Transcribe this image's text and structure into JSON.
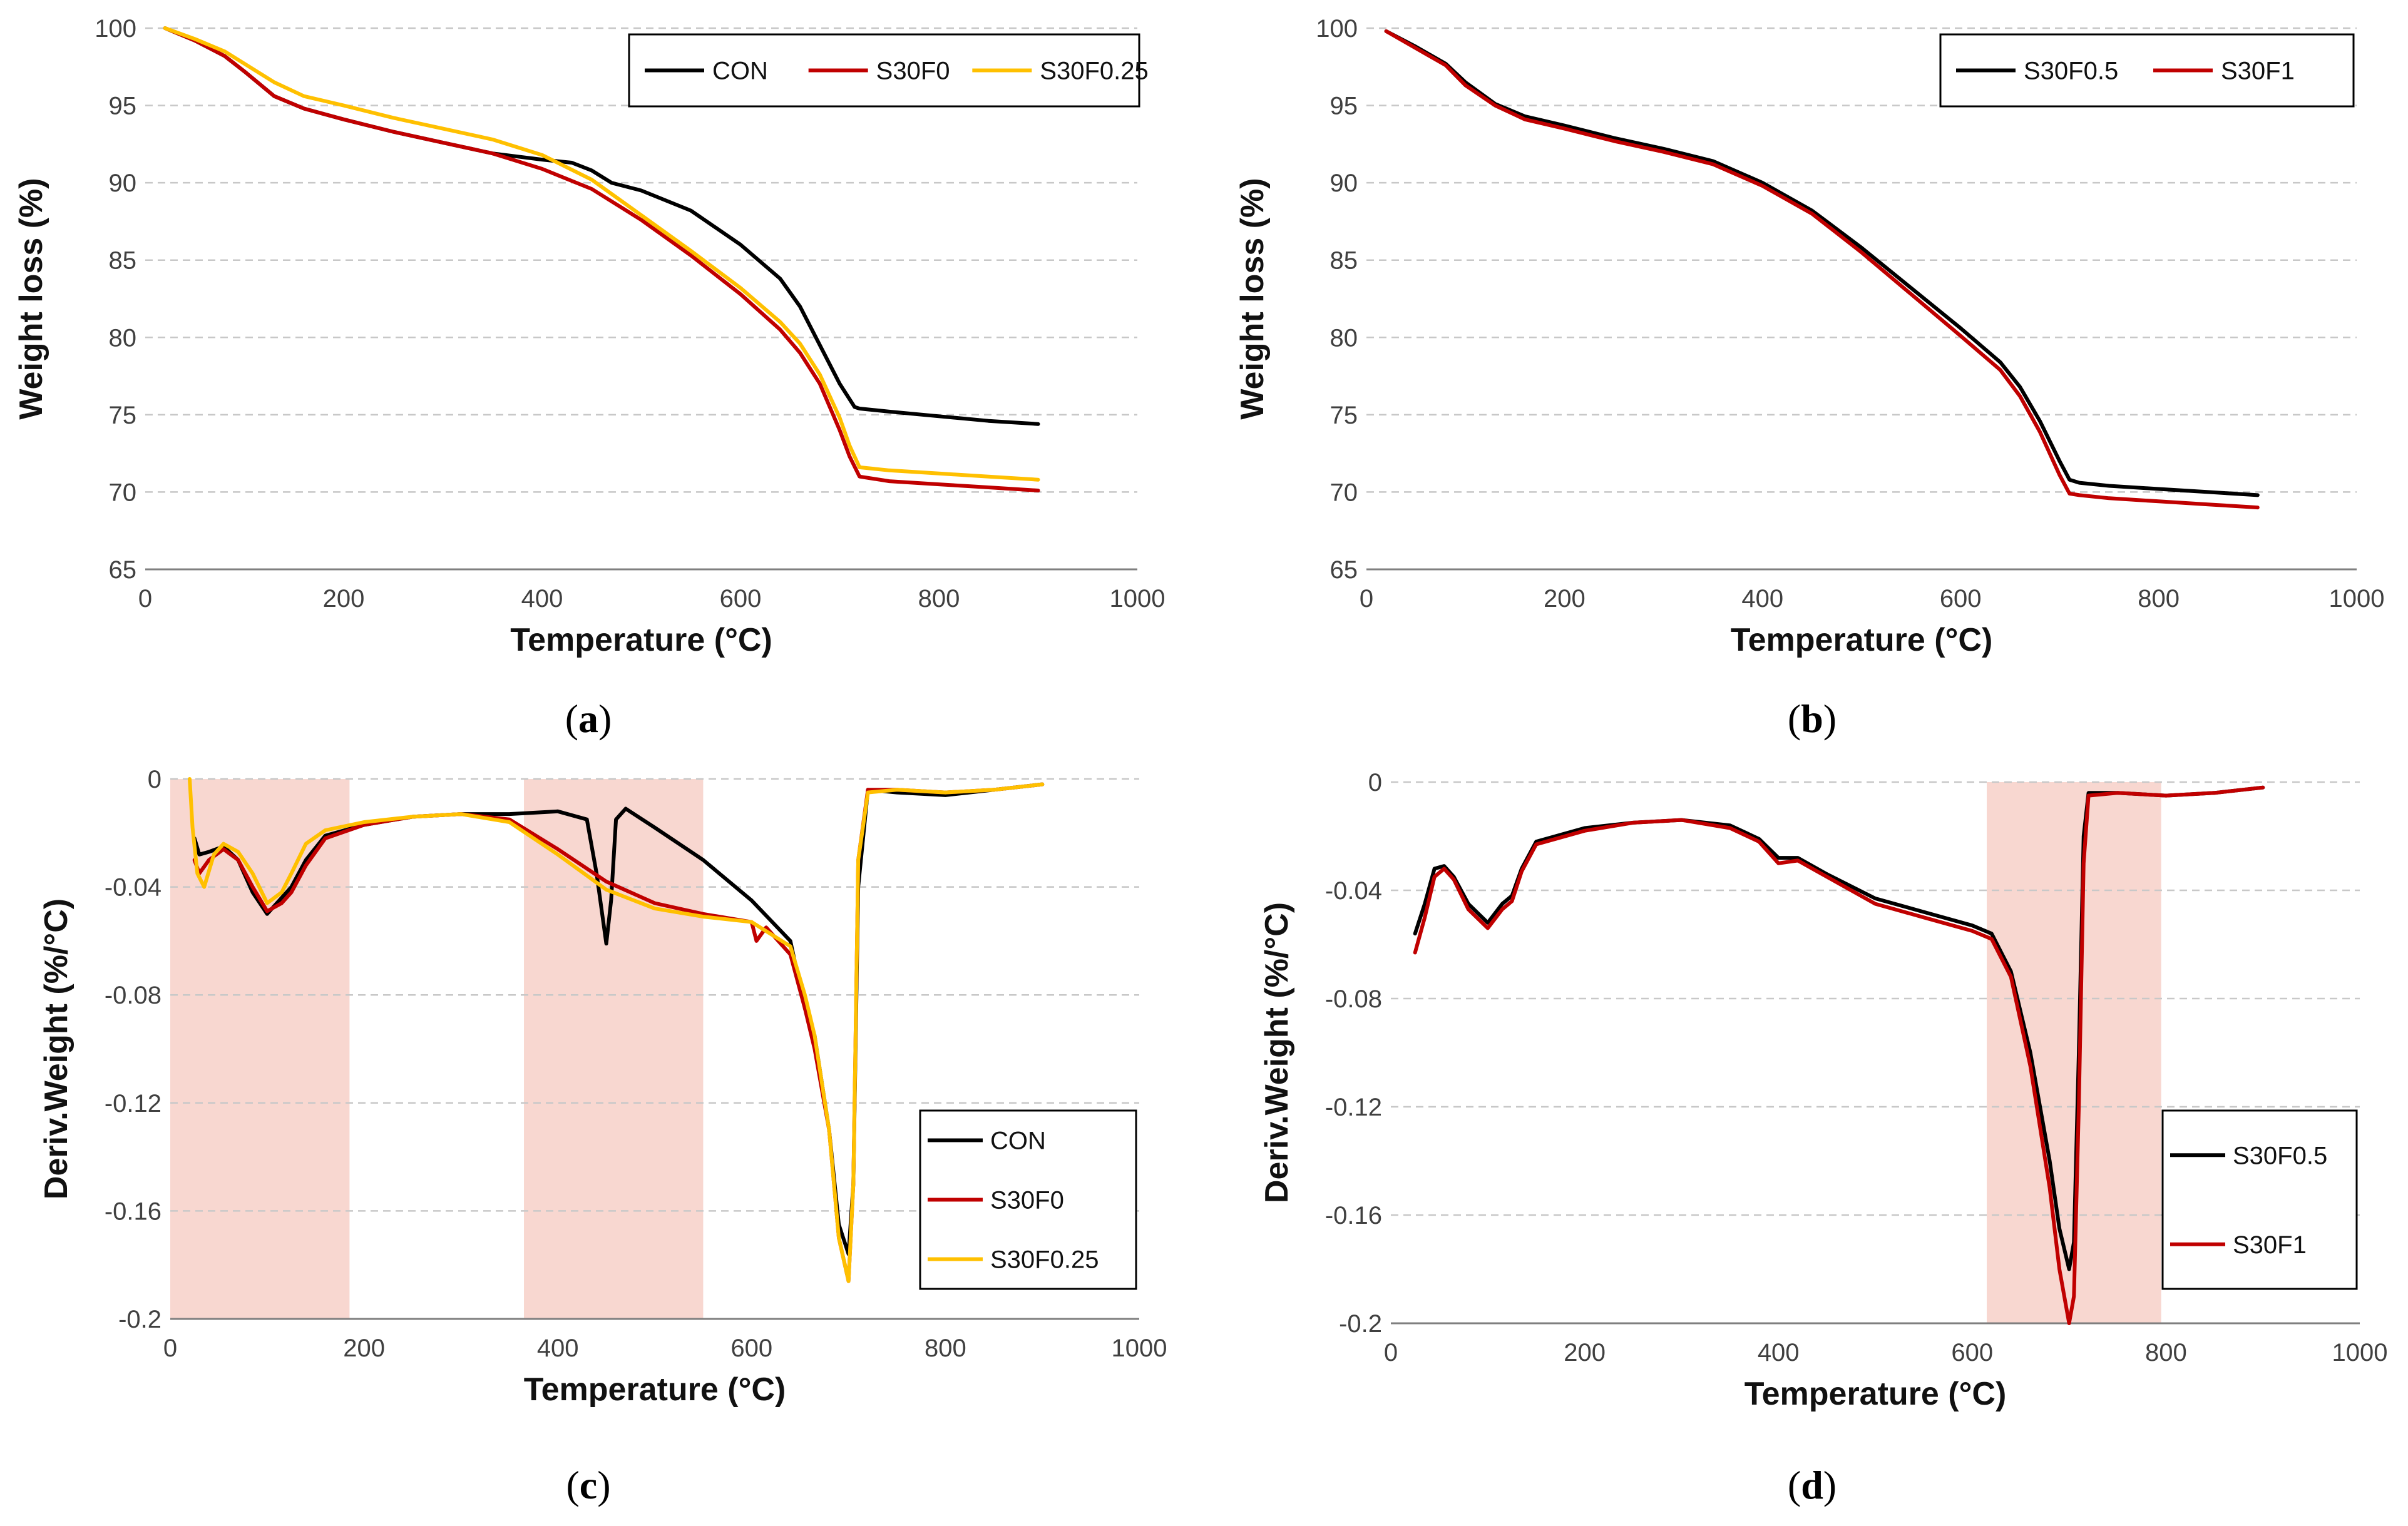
{
  "chart_data": [
    {
      "id": "a",
      "type": "line",
      "caption_letter": "a",
      "xlabel": "Temperature (°C)",
      "ylabel": "Weight loss (%)",
      "xlim": [
        0,
        1000
      ],
      "ylim": [
        65,
        100
      ],
      "xticks": [
        "0",
        "200",
        "400",
        "600",
        "800",
        "1000"
      ],
      "yticks": [
        "65",
        "70",
        "75",
        "80",
        "85",
        "90",
        "95",
        "100"
      ],
      "grid": true,
      "legend_position": "top-right",
      "shaded_ranges": [],
      "series": [
        {
          "name": "CON",
          "color": "#000000",
          "x": [
            20,
            50,
            80,
            100,
            130,
            160,
            200,
            250,
            300,
            350,
            400,
            430,
            450,
            470,
            500,
            550,
            600,
            640,
            660,
            680,
            700,
            715,
            720,
            750,
            800,
            850,
            900
          ],
          "y": [
            100,
            99.2,
            98.2,
            97.2,
            95.6,
            94.8,
            94.1,
            93.3,
            92.6,
            91.9,
            91.5,
            91.3,
            90.8,
            90.0,
            89.5,
            88.2,
            86.0,
            83.8,
            82.0,
            79.5,
            77.0,
            75.5,
            75.4,
            75.2,
            74.9,
            74.6,
            74.4
          ]
        },
        {
          "name": "S30F0",
          "color": "#c00000",
          "x": [
            20,
            50,
            80,
            100,
            130,
            160,
            200,
            250,
            300,
            350,
            400,
            450,
            500,
            550,
            600,
            640,
            660,
            680,
            700,
            710,
            720,
            750,
            800,
            850,
            900
          ],
          "y": [
            100,
            99.2,
            98.2,
            97.2,
            95.6,
            94.8,
            94.1,
            93.3,
            92.6,
            91.9,
            90.9,
            89.6,
            87.6,
            85.3,
            82.8,
            80.5,
            79.0,
            77.0,
            74.0,
            72.3,
            71.0,
            70.7,
            70.5,
            70.3,
            70.1
          ]
        },
        {
          "name": "S30F0.25",
          "color": "#ffc000",
          "x": [
            20,
            50,
            80,
            100,
            130,
            160,
            200,
            250,
            300,
            350,
            400,
            450,
            500,
            550,
            600,
            640,
            660,
            680,
            700,
            710,
            720,
            750,
            800,
            850,
            900
          ],
          "y": [
            100,
            99.3,
            98.5,
            97.7,
            96.5,
            95.6,
            95.0,
            94.2,
            93.5,
            92.8,
            91.8,
            90.2,
            87.9,
            85.6,
            83.2,
            81.0,
            79.6,
            77.6,
            74.8,
            73.0,
            71.6,
            71.4,
            71.2,
            71.0,
            70.8
          ]
        }
      ]
    },
    {
      "id": "b",
      "type": "line",
      "caption_letter": "b",
      "xlabel": "Temperature (°C)",
      "ylabel": "Weight loss (%)",
      "xlim": [
        0,
        1000
      ],
      "ylim": [
        65,
        100
      ],
      "xticks": [
        "0",
        "200",
        "400",
        "600",
        "800",
        "1000"
      ],
      "yticks": [
        "65",
        "70",
        "75",
        "80",
        "85",
        "90",
        "95",
        "100"
      ],
      "grid": true,
      "legend_position": "top-right",
      "shaded_ranges": [],
      "series": [
        {
          "name": "S30F0.5",
          "color": "#000000",
          "x": [
            20,
            50,
            80,
            100,
            130,
            160,
            200,
            250,
            300,
            350,
            400,
            450,
            500,
            550,
            600,
            640,
            660,
            680,
            700,
            710,
            720,
            750,
            800,
            850,
            900
          ],
          "y": [
            99.8,
            98.8,
            97.7,
            96.5,
            95.1,
            94.3,
            93.7,
            92.9,
            92.2,
            91.4,
            90.0,
            88.2,
            85.8,
            83.2,
            80.6,
            78.4,
            76.8,
            74.6,
            72.0,
            70.8,
            70.6,
            70.4,
            70.2,
            70.0,
            69.8
          ]
        },
        {
          "name": "S30F1",
          "color": "#c00000",
          "x": [
            20,
            50,
            80,
            100,
            130,
            160,
            200,
            250,
            300,
            350,
            400,
            450,
            500,
            550,
            600,
            640,
            660,
            680,
            700,
            710,
            720,
            750,
            800,
            850,
            900
          ],
          "y": [
            99.8,
            98.7,
            97.6,
            96.3,
            95.0,
            94.1,
            93.5,
            92.7,
            92.0,
            91.2,
            89.8,
            88.0,
            85.5,
            82.8,
            80.1,
            77.9,
            76.2,
            73.9,
            71.1,
            69.9,
            69.8,
            69.6,
            69.4,
            69.2,
            69.0
          ]
        }
      ]
    },
    {
      "id": "c",
      "type": "line",
      "caption_letter": "c",
      "xlabel": "Temperature (°C)",
      "ylabel": "Deriv.Weight (%/°C)",
      "xlim": [
        0,
        1000
      ],
      "ylim": [
        -0.2,
        0
      ],
      "xticks": [
        "0",
        "200",
        "400",
        "600",
        "800",
        "1000"
      ],
      "yticks": [
        "-0.2",
        "-0.16",
        "-0.12",
        "-0.08",
        "-0.04",
        "0"
      ],
      "grid": true,
      "legend_position": "bottom-right",
      "shaded_ranges": [
        [
          0,
          185
        ],
        [
          365,
          550
        ]
      ],
      "series": [
        {
          "name": "CON",
          "color": "#000000",
          "x": [
            25,
            30,
            40,
            55,
            70,
            85,
            100,
            115,
            125,
            140,
            160,
            200,
            250,
            300,
            350,
            400,
            430,
            440,
            450,
            455,
            460,
            470,
            500,
            550,
            600,
            640,
            655,
            665,
            680,
            690,
            700,
            705,
            710,
            720,
            750,
            800,
            850,
            900
          ],
          "y": [
            -0.022,
            -0.028,
            -0.027,
            -0.025,
            -0.03,
            -0.042,
            -0.05,
            -0.044,
            -0.04,
            -0.03,
            -0.021,
            -0.017,
            -0.014,
            -0.013,
            -0.013,
            -0.012,
            -0.015,
            -0.035,
            -0.061,
            -0.045,
            -0.015,
            -0.011,
            -0.018,
            -0.03,
            -0.045,
            -0.06,
            -0.085,
            -0.095,
            -0.13,
            -0.165,
            -0.176,
            -0.15,
            -0.04,
            -0.004,
            -0.005,
            -0.006,
            -0.004,
            -0.002
          ]
        },
        {
          "name": "S30F0",
          "color": "#c00000",
          "x": [
            25,
            30,
            40,
            55,
            70,
            85,
            100,
            115,
            125,
            140,
            160,
            200,
            250,
            300,
            350,
            400,
            450,
            500,
            550,
            600,
            605,
            615,
            640,
            655,
            665,
            680,
            690,
            700,
            705,
            710,
            720,
            750,
            800,
            850,
            900
          ],
          "y": [
            -0.03,
            -0.035,
            -0.03,
            -0.026,
            -0.03,
            -0.04,
            -0.049,
            -0.046,
            -0.042,
            -0.032,
            -0.022,
            -0.017,
            -0.014,
            -0.013,
            -0.015,
            -0.026,
            -0.038,
            -0.046,
            -0.05,
            -0.053,
            -0.06,
            -0.055,
            -0.065,
            -0.085,
            -0.1,
            -0.13,
            -0.17,
            -0.186,
            -0.15,
            -0.03,
            -0.004,
            -0.004,
            -0.005,
            -0.004,
            -0.002
          ]
        },
        {
          "name": "S30F0.25",
          "color": "#ffc000",
          "x": [
            20,
            23,
            28,
            35,
            45,
            55,
            70,
            85,
            100,
            115,
            125,
            140,
            160,
            200,
            250,
            300,
            350,
            400,
            450,
            500,
            550,
            600,
            640,
            655,
            665,
            680,
            690,
            700,
            705,
            710,
            720,
            750,
            800,
            850,
            900
          ],
          "y": [
            0,
            -0.018,
            -0.035,
            -0.04,
            -0.028,
            -0.024,
            -0.027,
            -0.035,
            -0.046,
            -0.042,
            -0.035,
            -0.024,
            -0.019,
            -0.016,
            -0.014,
            -0.013,
            -0.016,
            -0.028,
            -0.041,
            -0.048,
            -0.051,
            -0.053,
            -0.062,
            -0.08,
            -0.095,
            -0.13,
            -0.17,
            -0.186,
            -0.15,
            -0.03,
            -0.005,
            -0.004,
            -0.005,
            -0.004,
            -0.002
          ]
        }
      ]
    },
    {
      "id": "d",
      "type": "line",
      "caption_letter": "d",
      "xlabel": "Temperature (°C)",
      "ylabel": "Deriv.Weight (%/°C)",
      "xlim": [
        0,
        1000
      ],
      "ylim": [
        -0.2,
        0
      ],
      "xticks": [
        "0",
        "200",
        "400",
        "600",
        "800",
        "1000"
      ],
      "yticks": [
        "-0.2",
        "-0.16",
        "-0.12",
        "-0.08",
        "-0.04",
        "0"
      ],
      "grid": true,
      "legend_position": "bottom-right",
      "shaded_ranges": [
        [
          615,
          795
        ]
      ],
      "series": [
        {
          "name": "S30F0.5",
          "color": "#000000",
          "x": [
            25,
            35,
            45,
            55,
            65,
            80,
            100,
            115,
            125,
            135,
            150,
            200,
            250,
            300,
            350,
            380,
            400,
            420,
            450,
            500,
            550,
            600,
            620,
            640,
            660,
            680,
            690,
            700,
            705,
            710,
            715,
            720,
            750,
            800,
            850,
            900
          ],
          "y": [
            -0.056,
            -0.045,
            -0.032,
            -0.031,
            -0.035,
            -0.045,
            -0.052,
            -0.045,
            -0.042,
            -0.032,
            -0.022,
            -0.017,
            -0.015,
            -0.014,
            -0.016,
            -0.021,
            -0.028,
            -0.028,
            -0.034,
            -0.043,
            -0.048,
            -0.053,
            -0.056,
            -0.07,
            -0.1,
            -0.14,
            -0.165,
            -0.18,
            -0.17,
            -0.1,
            -0.02,
            -0.004,
            -0.004,
            -0.005,
            -0.004,
            -0.002
          ]
        },
        {
          "name": "S30F1",
          "color": "#c00000",
          "x": [
            25,
            35,
            45,
            55,
            65,
            80,
            100,
            115,
            125,
            135,
            150,
            200,
            250,
            300,
            350,
            380,
            400,
            420,
            450,
            500,
            550,
            600,
            620,
            640,
            660,
            680,
            690,
            700,
            705,
            710,
            715,
            720,
            750,
            800,
            850,
            900
          ],
          "y": [
            -0.063,
            -0.05,
            -0.035,
            -0.032,
            -0.036,
            -0.047,
            -0.054,
            -0.047,
            -0.044,
            -0.033,
            -0.023,
            -0.018,
            -0.015,
            -0.014,
            -0.017,
            -0.022,
            -0.03,
            -0.029,
            -0.035,
            -0.045,
            -0.05,
            -0.055,
            -0.058,
            -0.072,
            -0.105,
            -0.15,
            -0.18,
            -0.2,
            -0.19,
            -0.12,
            -0.03,
            -0.005,
            -0.004,
            -0.005,
            -0.004,
            -0.002
          ]
        }
      ]
    }
  ]
}
